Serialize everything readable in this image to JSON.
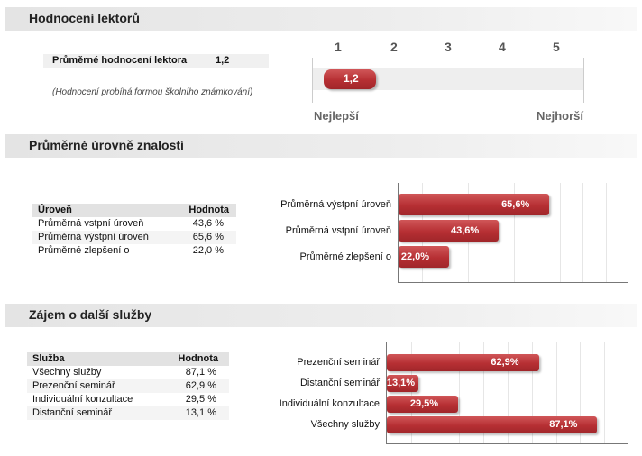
{
  "sections": {
    "rating_title": "Hodnocení lektorů",
    "levels_title": "Průměrné úrovně znalostí",
    "services_title": "Zájem o další služby"
  },
  "rating": {
    "label": "Průměrné hodnocení lektora",
    "value": "1,2",
    "note": "(Hodnocení probíhá formou školního známkování)",
    "scale": [
      "1",
      "2",
      "3",
      "4",
      "5"
    ],
    "best_label": "Nejlepší",
    "worst_label": "Nejhorší",
    "bar_value_label": "1,2",
    "bar_value": 1.2
  },
  "levels": {
    "table": {
      "headers": [
        "Úroveň",
        "Hodnota"
      ],
      "rows": [
        [
          "Průměrná vstpní úroveň",
          "43,6 %"
        ],
        [
          "Průměrná výstpní úroveň",
          "65,6 %"
        ],
        [
          "Průměrné zlepšení o",
          "22,0 %"
        ]
      ]
    }
  },
  "services": {
    "table": {
      "headers": [
        "Služba",
        "Hodnota"
      ],
      "rows": [
        [
          "Všechny služby",
          "87,1 %"
        ],
        [
          "Prezenční seminář",
          "62,9 %"
        ],
        [
          "Individuální konzultace",
          "29,5 %"
        ],
        [
          "Distanční seminář",
          "13,1 %"
        ]
      ]
    }
  },
  "colors": {
    "accent": "#b62f33",
    "header_bg": "#e4e4e4"
  },
  "chart_data": [
    {
      "type": "bar",
      "orientation": "horizontal",
      "categories": [
        "Průměrná výstpní úroveň",
        "Průměrná vstpní úroveň",
        "Průměrné zlepšení o"
      ],
      "values": [
        65.6,
        43.6,
        22.0
      ],
      "value_labels": [
        "65,6%",
        "43,6%",
        "22,0%"
      ],
      "xlim": [
        0,
        100
      ],
      "grid": true
    },
    {
      "type": "bar",
      "orientation": "horizontal",
      "categories": [
        "Prezenční seminář",
        "Distanční seminář",
        "Individuální konzultace",
        "Všechny služby"
      ],
      "values": [
        62.9,
        13.1,
        29.5,
        87.1
      ],
      "value_labels": [
        "62,9%",
        "13,1%",
        "29,5%",
        "87,1%"
      ],
      "xlim": [
        0,
        100
      ],
      "grid": true
    }
  ]
}
